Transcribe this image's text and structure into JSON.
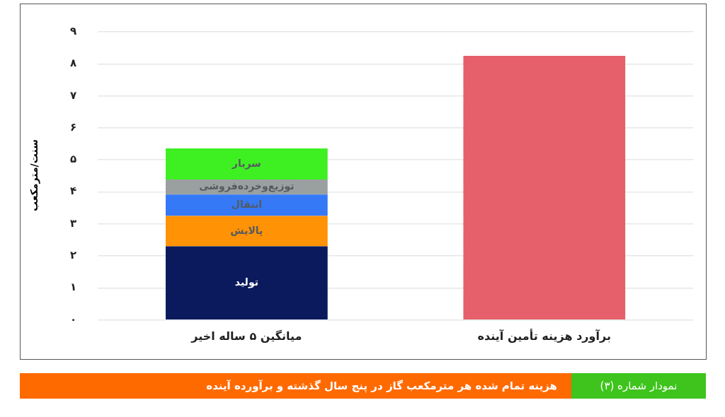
{
  "chart_data": {
    "type": "bar",
    "title": "نمودار شماره (۳)",
    "subtitle": "هزینه تمام شده هر مترمکعب گاز در پنج سال گذشته و برآورده آینده",
    "ylabel": "سنت/مترمکعب",
    "categories": [
      "میانگین ۵ ساله اخیر",
      "برآورد هزینه تأمین آینده"
    ],
    "stacked": true,
    "series": [
      {
        "name": "تولید",
        "color": "#0a1a5c",
        "values": [
          2.3,
          null
        ]
      },
      {
        "name": "پالایش",
        "color": "#ff9205",
        "values": [
          0.95,
          null
        ]
      },
      {
        "name": "انتقال",
        "color": "#3579f6",
        "values": [
          0.67,
          null
        ]
      },
      {
        "name": "توزیع‌وخرده‌فروشی",
        "color": "#9aa0a0",
        "values": [
          0.47,
          null
        ]
      },
      {
        "name": "سربار",
        "color": "#3ef022",
        "values": [
          0.97,
          null
        ]
      },
      {
        "color": "#e5606a",
        "values": [
          null,
          8.25
        ]
      }
    ],
    "ylim": [
      0,
      9
    ],
    "yticks": [
      {
        "value": 0,
        "label": "۰"
      },
      {
        "value": 1,
        "label": "۱"
      },
      {
        "value": 2,
        "label": "۲"
      },
      {
        "value": 3,
        "label": "۳"
      },
      {
        "value": 4,
        "label": "۴"
      },
      {
        "value": 5,
        "label": "۵"
      },
      {
        "value": 6,
        "label": "۶"
      },
      {
        "value": 7,
        "label": "۷"
      },
      {
        "value": 8,
        "label": "۸"
      },
      {
        "value": 9,
        "label": "۹"
      }
    ],
    "grid": "y",
    "legend": false
  }
}
